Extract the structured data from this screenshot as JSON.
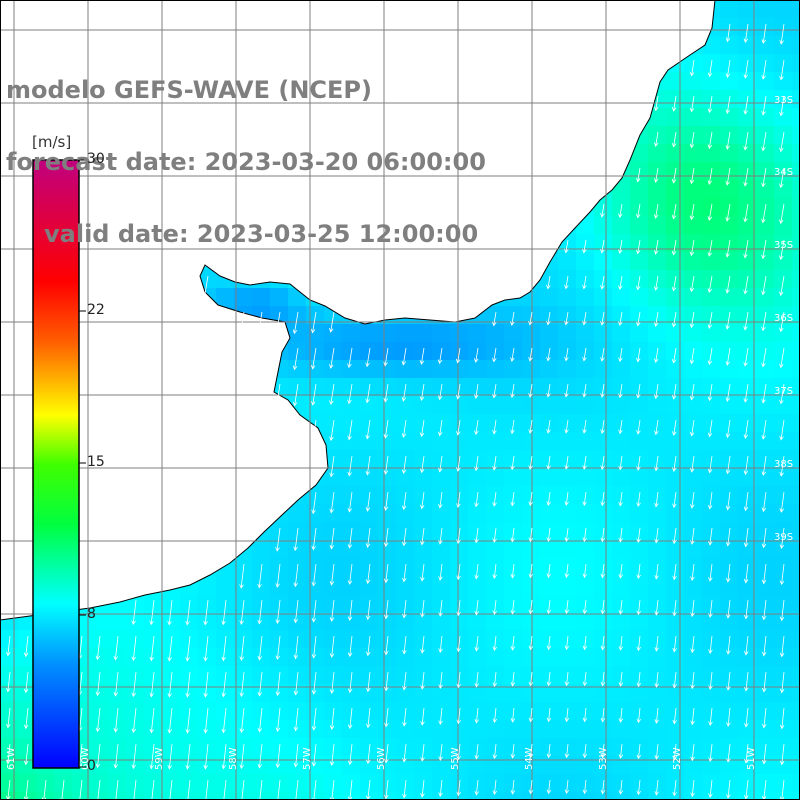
{
  "title": {
    "model": "modelo GEFS-WAVE (NCEP)",
    "forecast_date": "forecast date: 2023-03-20 06:00:00",
    "valid_date": "valid date: 2023-03-25 12:00:00"
  },
  "colorbar": {
    "unit": "[m/s]",
    "ticks": [
      "30",
      "22",
      "15",
      "8",
      "0"
    ],
    "min": 0,
    "max": 30
  },
  "colors": {
    "land": "#ffffff",
    "grid": "#7f7f7f",
    "coast": "#000000",
    "vector": "#ffffff",
    "title_text": "#7f7f7f"
  },
  "map": {
    "lat_labels": [
      "33S",
      "34S",
      "35S",
      "36S",
      "37S",
      "38S",
      "39S"
    ],
    "lon_labels": [
      "61W",
      "60W",
      "59W",
      "58W",
      "57W",
      "56W",
      "55W",
      "54W",
      "53W",
      "52W",
      "51W"
    ]
  }
}
